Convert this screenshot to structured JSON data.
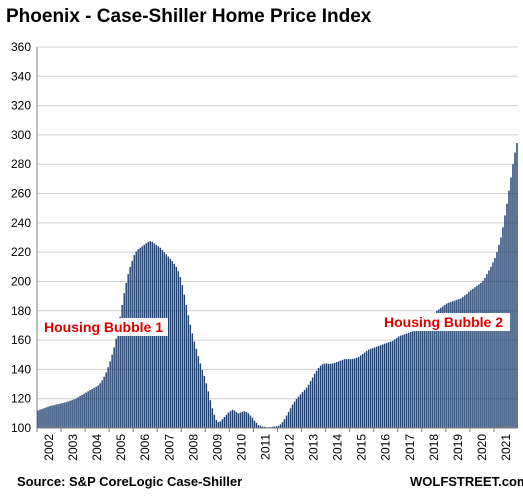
{
  "chart_data": {
    "type": "bar",
    "title": "Phoenix - Case-Shiller Home Price Index",
    "ylim": [
      100,
      360
    ],
    "yticks": [
      100,
      120,
      140,
      160,
      180,
      200,
      220,
      240,
      260,
      280,
      300,
      320,
      340,
      360
    ],
    "xtick_labels": [
      "2002",
      "2003",
      "2004",
      "2005",
      "2006",
      "2007",
      "2008",
      "2009",
      "2010",
      "2011",
      "2012",
      "2013",
      "2014",
      "2015",
      "2016",
      "2017",
      "2018",
      "2019",
      "2020",
      "2021"
    ],
    "grid": true,
    "frequency": "monthly",
    "x_start": "2002-01",
    "x_end": "2021-12",
    "series": [
      {
        "color": "#1F3F6E",
        "annual_values": [
          {
            "year": 2002,
            "values": [
              112.0,
              112.5,
              113.0,
              113.5,
              114.0,
              114.5,
              115.0,
              115.3,
              115.6,
              116.0,
              116.3,
              116.6
            ]
          },
          {
            "year": 2003,
            "values": [
              117.0,
              117.3,
              117.6,
              118.0,
              118.5,
              119.0,
              119.6,
              120.2,
              121.0,
              121.8,
              122.6,
              123.4
            ]
          },
          {
            "year": 2004,
            "values": [
              124.2,
              125.0,
              125.8,
              126.6,
              127.4,
              128.2,
              129.0,
              130.5,
              132.5,
              135.0,
              138.0,
              141.5
            ]
          },
          {
            "year": 2005,
            "values": [
              145.5,
              150.0,
              155.0,
              161.0,
              168.0,
              176.0,
              184.0,
              192.0,
              199.0,
              205.0,
              210.0,
              214.0
            ]
          },
          {
            "year": 2006,
            "values": [
              218.0,
              220.5,
              222.0,
              223.0,
              224.0,
              225.0,
              226.0,
              227.0,
              227.5,
              227.0,
              226.0,
              225.0
            ]
          },
          {
            "year": 2007,
            "values": [
              224.0,
              223.0,
              221.5,
              220.0,
              218.5,
              217.0,
              215.5,
              214.0,
              212.0,
              210.0,
              207.0,
              203.0
            ]
          },
          {
            "year": 2008,
            "values": [
              197.5,
              191.0,
              184.0,
              177.0,
              170.5,
              164.5,
              159.0,
              154.0,
              149.0,
              144.0,
              139.5,
              135.5
            ]
          },
          {
            "year": 2009,
            "values": [
              130.5,
              125.0,
              119.0,
              113.5,
              109.0,
              105.5,
              104.0,
              104.5,
              106.0,
              107.5,
              109.0,
              110.5
            ]
          },
          {
            "year": 2010,
            "values": [
              111.5,
              112.5,
              112.0,
              111.0,
              110.0,
              110.5,
              111.0,
              111.5,
              111.0,
              110.0,
              108.5,
              107.0
            ]
          },
          {
            "year": 2011,
            "values": [
              105.0,
              103.5,
              102.0,
              101.5,
              101.0,
              100.8,
              100.5,
              100.5,
              100.6,
              100.8,
              101.0,
              101.2
            ]
          },
          {
            "year": 2012,
            "values": [
              101.5,
              102.5,
              104.0,
              106.0,
              108.5,
              111.0,
              113.5,
              116.0,
              118.0,
              120.0,
              121.5,
              123.0
            ]
          },
          {
            "year": 2013,
            "values": [
              124.5,
              126.0,
              127.5,
              129.5,
              132.0,
              134.5,
              137.0,
              139.0,
              141.0,
              142.5,
              143.5,
              144.0
            ]
          },
          {
            "year": 2014,
            "values": [
              144.0,
              143.8,
              143.8,
              144.0,
              144.5,
              145.0,
              145.5,
              146.0,
              146.5,
              147.0,
              147.0,
              147.0
            ]
          },
          {
            "year": 2015,
            "values": [
              147.0,
              147.2,
              147.5,
              148.0,
              148.5,
              149.5,
              150.5,
              151.5,
              152.5,
              153.5,
              154.0,
              154.5
            ]
          },
          {
            "year": 2016,
            "values": [
              155.0,
              155.5,
              156.0,
              156.5,
              157.0,
              157.5,
              158.0,
              158.5,
              159.0,
              159.5,
              160.5,
              161.5
            ]
          },
          {
            "year": 2017,
            "values": [
              162.5,
              163.0,
              163.5,
              164.0,
              164.5,
              165.0,
              165.5,
              166.0,
              166.5,
              167.0,
              167.5,
              168.0
            ]
          },
          {
            "year": 2018,
            "values": [
              169.5,
              171.0,
              172.5,
              174.0,
              175.5,
              177.0,
              178.5,
              180.0,
              181.0,
              182.0,
              183.0,
              184.0
            ]
          },
          {
            "year": 2019,
            "values": [
              185.0,
              185.5,
              186.0,
              186.5,
              187.0,
              187.5,
              188.0,
              188.5,
              189.5,
              190.5,
              191.5,
              193.0
            ]
          },
          {
            "year": 2020,
            "values": [
              194.0,
              195.0,
              196.0,
              197.0,
              198.0,
              199.0,
              200.5,
              202.5,
              205.0,
              207.5,
              210.0,
              213.0
            ]
          },
          {
            "year": 2021,
            "values": [
              216.0,
              220.0,
              225.0,
              230.0,
              237.0,
              245.0,
              253.0,
              262.0,
              271.0,
              280.0,
              288.0,
              294.5
            ]
          }
        ]
      }
    ],
    "annotations": [
      {
        "text": "Housing Bubble 1",
        "color": "#E00000"
      },
      {
        "text": "Housing Bubble 2",
        "color": "#E00000"
      }
    ],
    "source": "Source: S&P CoreLogic Case-Shiller",
    "brand": "WOLFSTREET.com"
  }
}
